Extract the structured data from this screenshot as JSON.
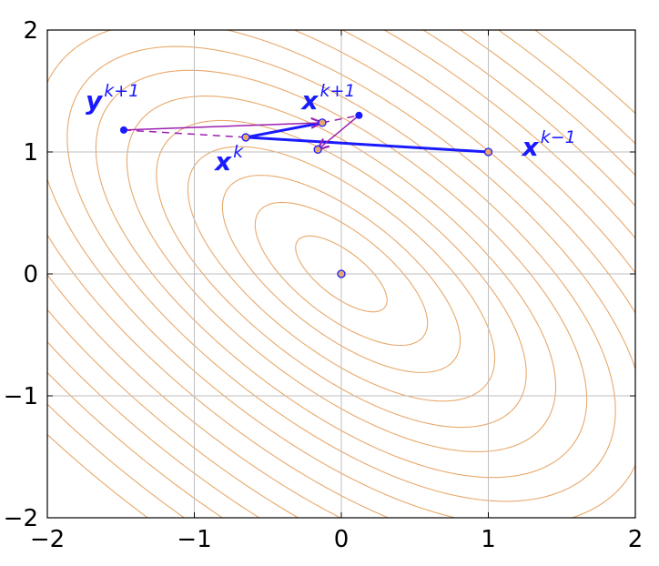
{
  "chart_data": {
    "type": "contour-with-iterates",
    "xlim": [
      -2,
      2
    ],
    "ylim": [
      -2,
      2
    ],
    "x_ticks": [
      -2,
      -1,
      0,
      1,
      2
    ],
    "y_ticks": [
      -2,
      -1,
      0,
      1,
      2
    ],
    "x_tick_labels": [
      "−2",
      "−1",
      "0",
      "1",
      "2"
    ],
    "y_tick_labels": [
      "−2",
      "−1",
      "0",
      "1",
      "2"
    ],
    "grid": true,
    "contour": {
      "center": [
        0,
        0
      ],
      "color": "#e8a86b",
      "note_levels": "elongated ellipse-like level sets oriented along y = -x",
      "quadratic": {
        "a": 1.0,
        "b": 1.4,
        "c": 1.0
      },
      "cubic": 0.12,
      "levels": [
        0.05,
        0.18,
        0.35,
        0.6,
        0.9,
        1.25,
        1.7,
        2.2,
        2.8,
        3.5,
        4.3,
        5.2,
        6.2,
        7.3,
        8.6,
        10.0
      ]
    },
    "points": {
      "optimum": {
        "x": 0.0,
        "y": 0.0
      },
      "x_km1": {
        "x": 1.0,
        "y": 1.0
      },
      "x_k": {
        "x": -0.65,
        "y": 1.12
      },
      "y_kp1": {
        "x": -1.48,
        "y": 1.18
      },
      "x_kp1": {
        "x": -0.13,
        "y": 1.24
      },
      "extra_top": {
        "x": 0.12,
        "y": 1.3
      },
      "extra_mid": {
        "x": -0.16,
        "y": 1.02
      }
    },
    "series": [
      {
        "style": "solid-blue",
        "path": [
          [
            1.0,
            1.0
          ],
          [
            -0.65,
            1.12
          ],
          [
            -0.13,
            1.24
          ]
        ]
      },
      {
        "style": "dashed-purple",
        "path": [
          [
            -1.48,
            1.18
          ],
          [
            -0.65,
            1.12
          ]
        ]
      },
      {
        "style": "dashed-purple",
        "path": [
          [
            -0.13,
            1.24
          ],
          [
            0.12,
            1.3
          ]
        ]
      },
      {
        "style": "arrow-purple",
        "path": [
          [
            -1.48,
            1.18
          ],
          [
            -0.13,
            1.24
          ]
        ]
      },
      {
        "style": "arrow-purple",
        "path": [
          [
            0.12,
            1.3
          ],
          [
            -0.16,
            1.02
          ]
        ]
      }
    ],
    "labels": [
      {
        "main": "y",
        "sup": "k+1",
        "x": -1.74,
        "y": 1.35
      },
      {
        "main": "x",
        "sup": "k+1",
        "x": -0.27,
        "y": 1.35
      },
      {
        "main": "x",
        "sup": "k",
        "x": -0.86,
        "y": 0.85
      },
      {
        "main": "x",
        "sup": "k−1",
        "x": 1.23,
        "y": 0.97
      }
    ],
    "colors": {
      "blue": "#1a1aff",
      "purple": "#9b1fb0",
      "point_fill": "#e8a86b",
      "grid": "#bfbfbf",
      "frame": "#000000"
    }
  }
}
